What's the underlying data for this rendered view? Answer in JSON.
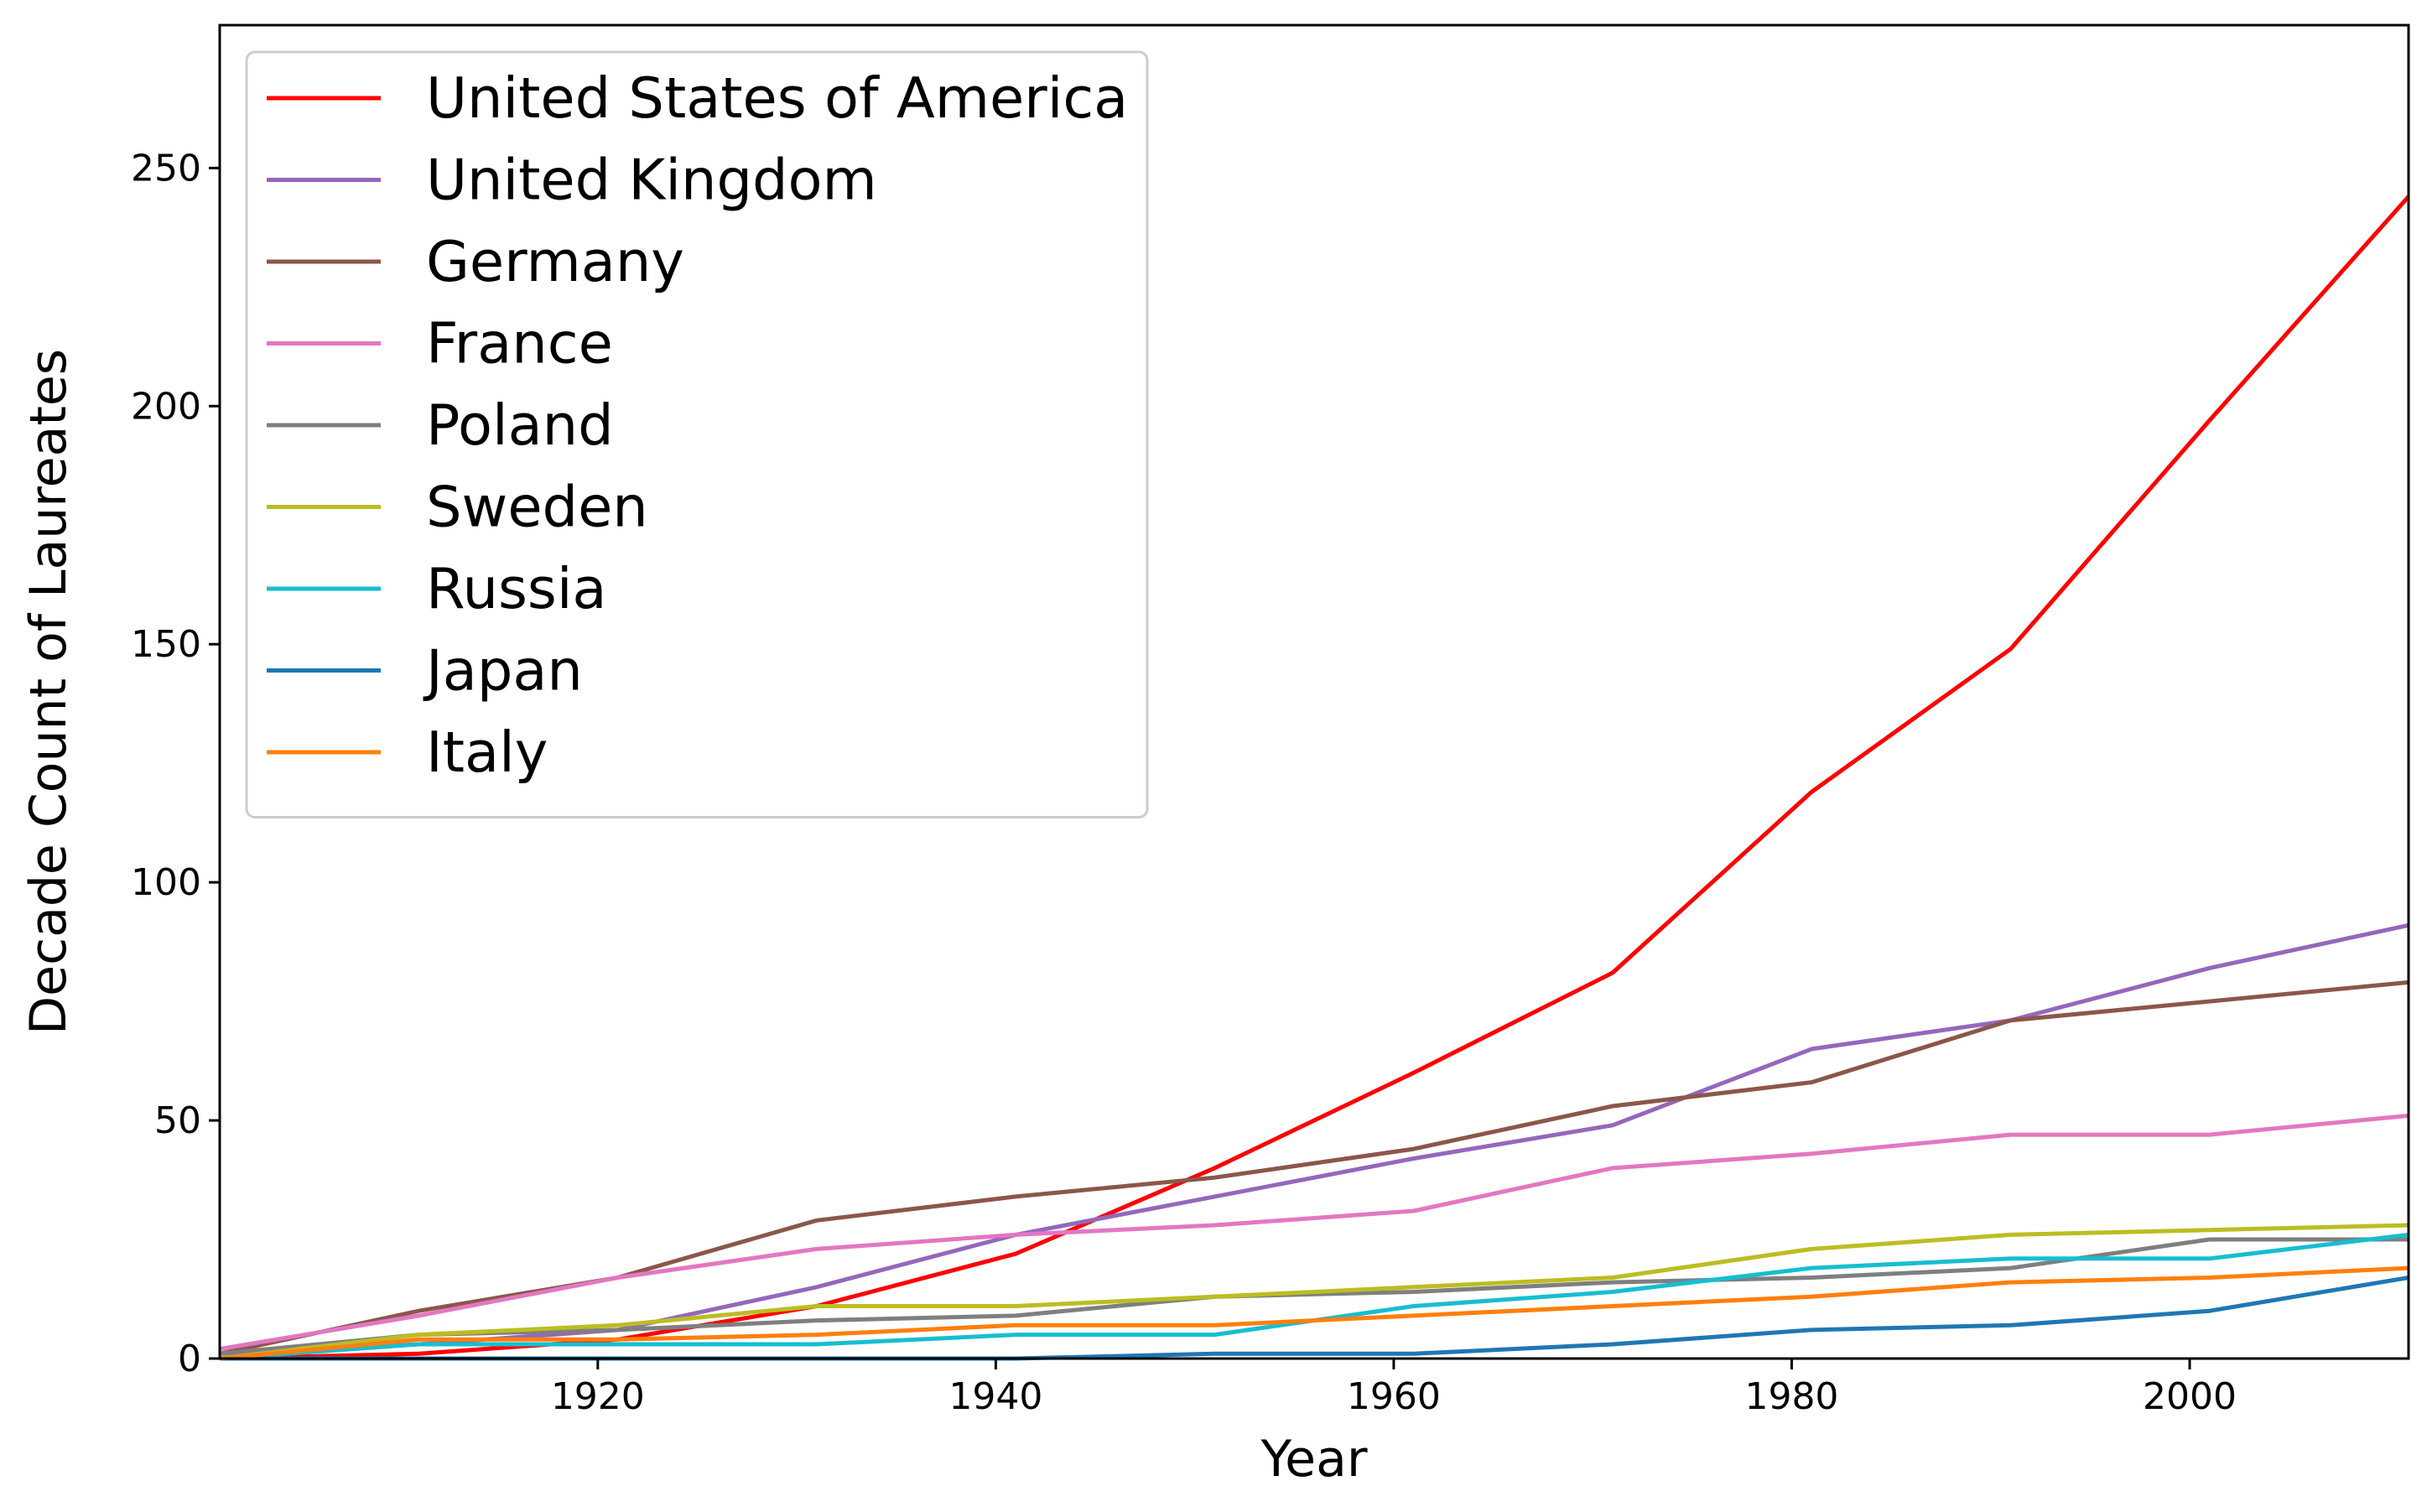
{
  "chart_data": {
    "type": "line",
    "title": "",
    "xlabel": "Year",
    "ylabel": "Decade Count of Laureates",
    "xlim": [
      1901,
      2011
    ],
    "ylim": [
      0,
      280
    ],
    "xticks": [
      1920,
      1940,
      1960,
      1980,
      2000
    ],
    "yticks": [
      0,
      50,
      100,
      150,
      200,
      250
    ],
    "grid": false,
    "legend_position": "top-left",
    "x": [
      1901,
      1911,
      1921,
      1931,
      1941,
      1951,
      1961,
      1971,
      1981,
      1991,
      2001,
      2011
    ],
    "series": [
      {
        "name": "United States of America",
        "color": "#ff0000",
        "values": [
          0,
          1,
          4,
          11,
          22,
          40,
          60,
          81,
          119,
          149,
          197,
          244
        ]
      },
      {
        "name": "United Kingdom",
        "color": "#9467bd",
        "values": [
          1,
          3,
          6,
          15,
          26,
          34,
          42,
          49,
          65,
          71,
          82,
          91
        ]
      },
      {
        "name": "Germany",
        "color": "#8c564b",
        "values": [
          1,
          10,
          17,
          29,
          34,
          38,
          44,
          53,
          58,
          71,
          75,
          79
        ]
      },
      {
        "name": "France",
        "color": "#e377c2",
        "values": [
          2,
          9,
          17,
          23,
          26,
          28,
          31,
          40,
          43,
          47,
          47,
          51
        ]
      },
      {
        "name": "Poland",
        "color": "#7f7f7f",
        "values": [
          1,
          5,
          6,
          8,
          9,
          13,
          14,
          16,
          17,
          19,
          25,
          25
        ]
      },
      {
        "name": "Sweden",
        "color": "#bcbd22",
        "values": [
          0,
          5,
          7,
          11,
          11,
          13,
          15,
          17,
          23,
          26,
          27,
          28
        ]
      },
      {
        "name": "Russia",
        "color": "#17becf",
        "values": [
          0,
          3,
          3,
          3,
          5,
          5,
          11,
          14,
          19,
          21,
          21,
          26
        ]
      },
      {
        "name": "Japan",
        "color": "#1f77b4",
        "values": [
          0,
          0,
          0,
          0,
          0,
          1,
          1,
          3,
          6,
          7,
          10,
          17
        ]
      },
      {
        "name": "Italy",
        "color": "#ff7f0e",
        "values": [
          0,
          4,
          4,
          5,
          7,
          7,
          9,
          11,
          13,
          16,
          17,
          19
        ]
      }
    ]
  }
}
